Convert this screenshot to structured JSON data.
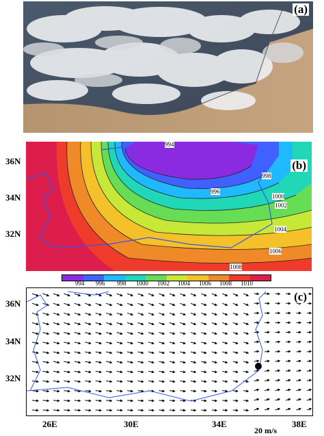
{
  "panel_a": {
    "tag": "(a)"
  },
  "panel_b": {
    "tag": "(b)",
    "y_labels": [
      "36N",
      "34N",
      "32N"
    ],
    "contour_labels": [
      "994",
      "996",
      "998",
      "1000",
      "1002",
      "1004",
      "1006",
      "1008"
    ],
    "colorbar_ticks": [
      "994",
      "996",
      "998",
      "1000",
      "1002",
      "1004",
      "1006",
      "1008",
      "1010"
    ],
    "colors": [
      "#8a2be2",
      "#4060ff",
      "#20b8ff",
      "#20d8b8",
      "#66dd55",
      "#c8e838",
      "#f5c12a",
      "#f08a28",
      "#ee3b2b",
      "#dd1e4c"
    ]
  },
  "panel_c": {
    "tag": "(c)",
    "y_labels": [
      "36N",
      "34N",
      "32N"
    ],
    "x_labels": [
      "26E",
      "30E",
      "34E",
      "38E"
    ],
    "scale_label": "20 m/s"
  }
}
